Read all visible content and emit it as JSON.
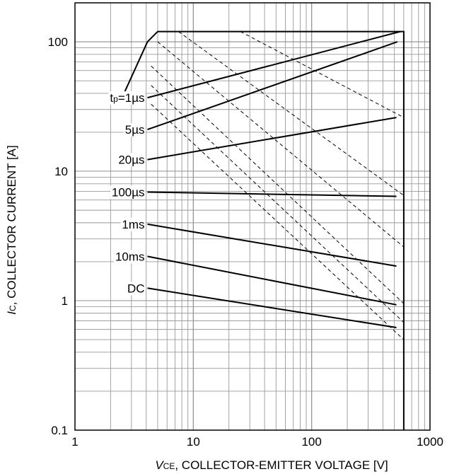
{
  "chart_data": {
    "type": "line",
    "xlabel_italic": "V",
    "xlabel_sub": "CE",
    "xlabel_rest": ", COLLECTOR-EMITTER VOLTAGE [V]",
    "ylabel_italic": "I",
    "ylabel_sub": "C",
    "ylabel_rest": ", COLLECTOR CURRENT [A]",
    "x_scale": "log",
    "y_scale": "log",
    "xlim": [
      1,
      1000
    ],
    "ylim": [
      0.1,
      200
    ],
    "grid": true,
    "x_ticks": [
      {
        "value": 1,
        "label": "1"
      },
      {
        "value": 10,
        "label": "10"
      },
      {
        "value": 100,
        "label": "100"
      },
      {
        "value": 1000,
        "label": "1000"
      }
    ],
    "y_ticks": [
      {
        "value": 0.1,
        "label": "0.1"
      },
      {
        "value": 1,
        "label": "1"
      },
      {
        "value": 10,
        "label": "10"
      },
      {
        "value": 100,
        "label": "100"
      }
    ],
    "boundary": {
      "style": "solid",
      "points": [
        [
          2.6,
          40
        ],
        [
          4.1,
          100
        ],
        [
          5,
          120
        ],
        [
          600,
          120
        ],
        [
          600,
          0.1
        ]
      ]
    },
    "series": [
      {
        "name": "tp=1µs",
        "label_parts": [
          "t",
          "p",
          "=1µs"
        ],
        "style": "solid",
        "points": [
          [
            4.1,
            37
          ],
          [
            560,
            120
          ]
        ]
      },
      {
        "name": "5µs",
        "label": "5µs",
        "style": "solid",
        "points": [
          [
            4.1,
            21
          ],
          [
            530,
            100
          ]
        ]
      },
      {
        "name": "20µs",
        "label": "20µs",
        "style": "solid",
        "points": [
          [
            4.1,
            12.3
          ],
          [
            520,
            26
          ]
        ]
      },
      {
        "name": "100µs",
        "label": "100µs",
        "style": "solid",
        "points": [
          [
            4.1,
            6.9
          ],
          [
            520,
            6.4
          ]
        ]
      },
      {
        "name": "1ms",
        "label": "1ms",
        "style": "solid",
        "points": [
          [
            4.1,
            3.9
          ],
          [
            520,
            1.85
          ]
        ]
      },
      {
        "name": "10ms",
        "label": "10ms",
        "style": "solid",
        "points": [
          [
            4.1,
            2.2
          ],
          [
            520,
            0.93
          ]
        ]
      },
      {
        "name": "DC",
        "label": "DC",
        "style": "solid",
        "points": [
          [
            4.1,
            1.25
          ],
          [
            520,
            0.62
          ]
        ]
      },
      {
        "style": "dashed",
        "points": [
          [
            5,
            120
          ],
          [
            600,
            120
          ]
        ]
      },
      {
        "style": "dashed",
        "points": [
          [
            25,
            120
          ],
          [
            600,
            26
          ]
        ]
      },
      {
        "style": "dashed",
        "points": [
          [
            7.5,
            120
          ],
          [
            600,
            6.5
          ]
        ]
      },
      {
        "style": "dashed",
        "points": [
          [
            5,
            100
          ],
          [
            600,
            2.6
          ]
        ]
      },
      {
        "style": "dashed",
        "points": [
          [
            4.4,
            65
          ],
          [
            600,
            0.95
          ]
        ]
      },
      {
        "style": "dashed",
        "points": [
          [
            4.4,
            46
          ],
          [
            600,
            0.68
          ]
        ]
      },
      {
        "style": "dashed",
        "points": [
          [
            4.4,
            33
          ],
          [
            600,
            0.5
          ]
        ]
      }
    ]
  }
}
